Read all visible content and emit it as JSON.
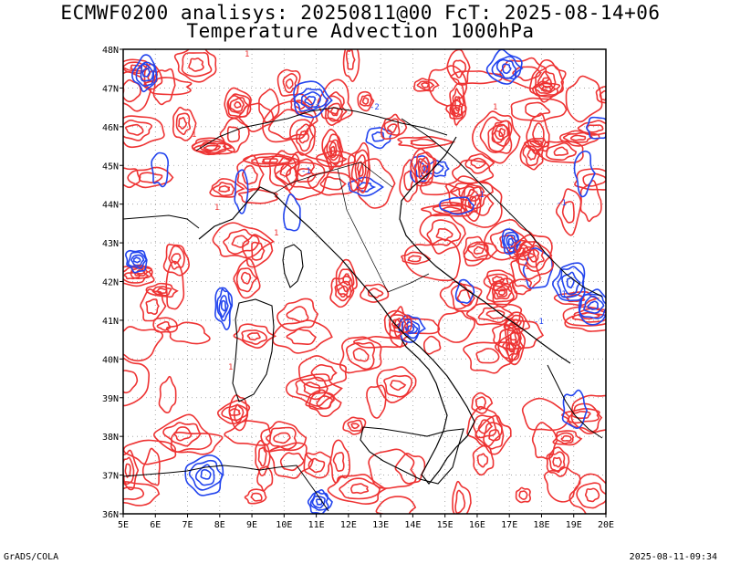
{
  "header": {
    "line1": "ECMWF0200 analisys: 20250811@00 FcT: 2025-08-14+06",
    "line2": "Temperature Advection 1000hPa"
  },
  "map": {
    "lon_labels": [
      "5E",
      "6E",
      "7E",
      "8E",
      "9E",
      "10E",
      "11E",
      "12E",
      "13E",
      "14E",
      "15E",
      "16E",
      "17E",
      "18E",
      "19E",
      "20E"
    ],
    "lat_labels": [
      "36N",
      "37N",
      "38N",
      "39N",
      "40N",
      "41N",
      "42N",
      "43N",
      "44N",
      "45N",
      "46N",
      "47N",
      "48N"
    ],
    "lon_range": [
      5,
      20
    ],
    "lat_range": [
      36,
      48
    ],
    "grid": "dotted every 1 degree",
    "contour_colors": {
      "positive": "#ee3333",
      "negative": "#2244ee",
      "coast": "#000000",
      "grid": "#999999"
    },
    "contour_labels": [
      "1",
      "1",
      "1",
      "-1",
      "1",
      "-1",
      "1",
      "-1",
      "-1",
      "1",
      "-2",
      "1",
      "-1"
    ]
  },
  "footer": {
    "left": "GrADS/COLA",
    "right": "2025-08-11-09:34"
  }
}
